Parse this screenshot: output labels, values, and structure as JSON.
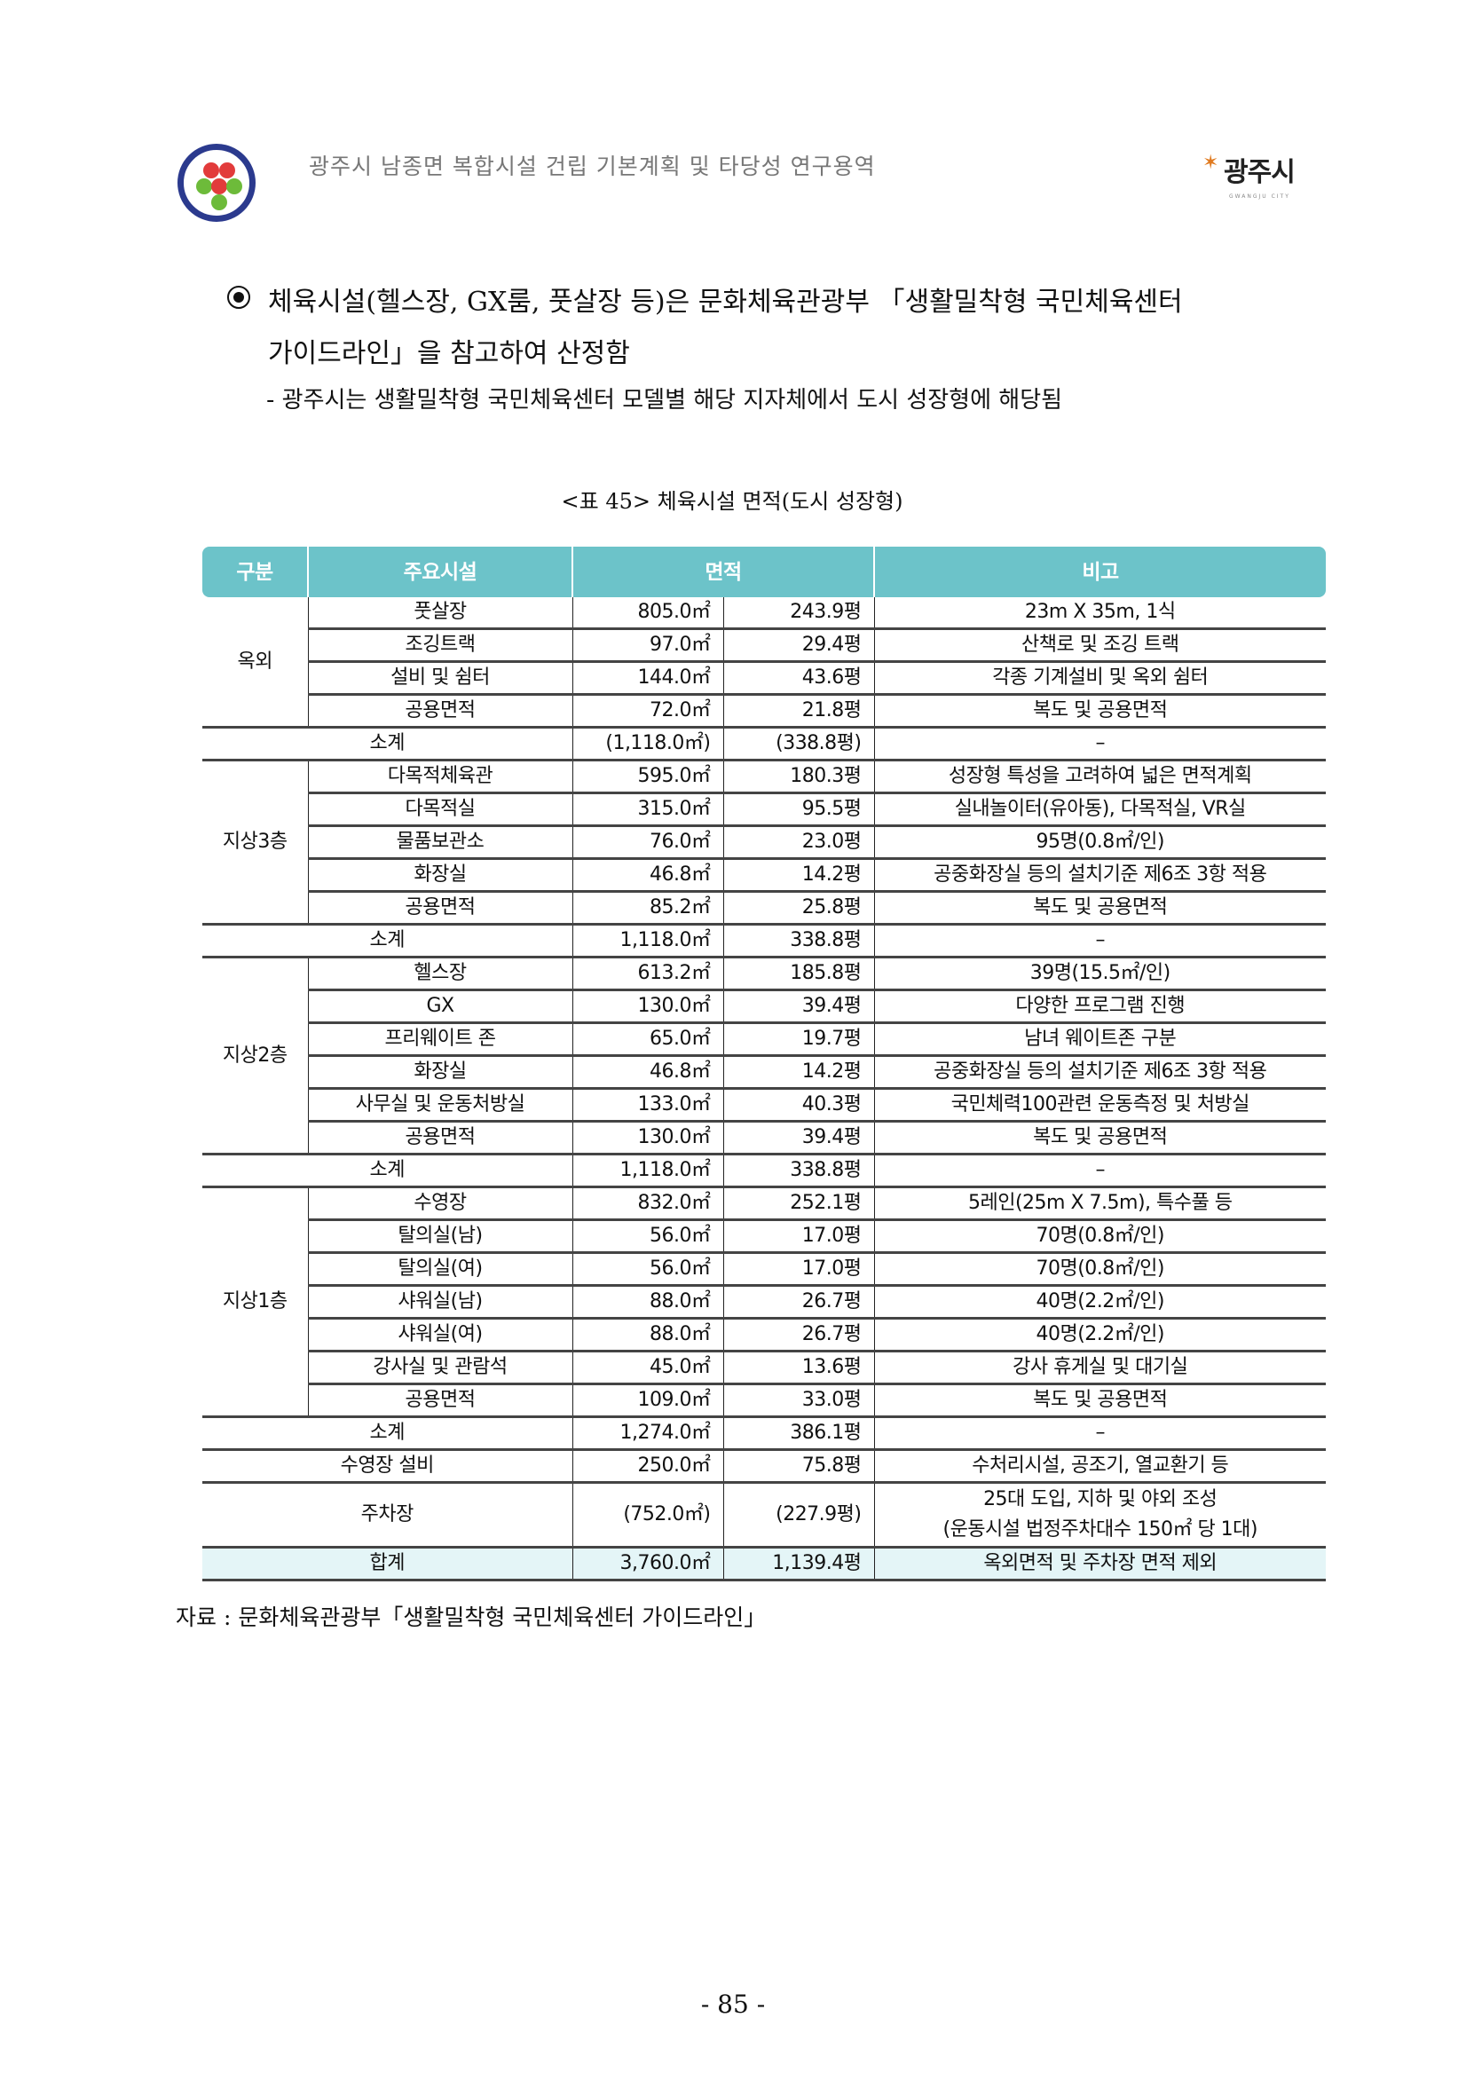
{
  "header": {
    "title": "광주시 남종면 복합시설 건립 기본계획 및 타당성 연구용역",
    "city_logo_text": "광주시",
    "city_logo_sub": "GWANGJU CITY"
  },
  "body": {
    "bullet_line1": "체육시설(헬스장,  GX룸,  풋살장  등)은  문화체육관광부  「생활밀착형  국민체육센터",
    "bullet_line2": "가이드라인」을 참고하여 산정함",
    "sub_item": "- 광주시는 생활밀착형 국민체육센터 모델별 해당 지자체에서 도시 성장형에 해당됨"
  },
  "table": {
    "caption": "<표 45> 체육시설 면적(도시 성장형)",
    "header_color": "#6cc3c9",
    "headers": [
      "구분",
      "주요시설",
      "면적",
      "비고"
    ],
    "groups": [
      {
        "label": "옥외",
        "rows": [
          {
            "facility": "풋살장",
            "m2": "805.0㎡",
            "py": "243.9평",
            "note": "23m X 35m, 1식"
          },
          {
            "facility": "조깅트랙",
            "m2": "97.0㎡",
            "py": "29.4평",
            "note": "산책로 및 조깅 트랙"
          },
          {
            "facility": "설비 및 쉼터",
            "m2": "144.0㎡",
            "py": "43.6평",
            "note": "각종 기계설비 및 옥외 쉼터"
          },
          {
            "facility": "공용면적",
            "m2": "72.0㎡",
            "py": "21.8평",
            "note": "복도 및 공용면적"
          }
        ],
        "subtotal": {
          "label": "소계",
          "m2": "(1,118.0㎡)",
          "py": "(338.8평)",
          "note": "–"
        }
      },
      {
        "label": "지상3층",
        "rows": [
          {
            "facility": "다목적체육관",
            "m2": "595.0㎡",
            "py": "180.3평",
            "note": "성장형 특성을 고려하여 넓은 면적계획"
          },
          {
            "facility": "다목적실",
            "m2": "315.0㎡",
            "py": "95.5평",
            "note": "실내놀이터(유아동), 다목적실, VR실"
          },
          {
            "facility": "물품보관소",
            "m2": "76.0㎡",
            "py": "23.0평",
            "note": "95명(0.8㎡/인)"
          },
          {
            "facility": "화장실",
            "m2": "46.8㎡",
            "py": "14.2평",
            "note": "공중화장실 등의 설치기준 제6조 3항 적용"
          },
          {
            "facility": "공용면적",
            "m2": "85.2㎡",
            "py": "25.8평",
            "note": "복도 및 공용면적"
          }
        ],
        "subtotal": {
          "label": "소계",
          "m2": "1,118.0㎡",
          "py": "338.8평",
          "note": "–"
        }
      },
      {
        "label": "지상2층",
        "rows": [
          {
            "facility": "헬스장",
            "m2": "613.2㎡",
            "py": "185.8평",
            "note": "39명(15.5㎡/인)"
          },
          {
            "facility": "GX",
            "m2": "130.0㎡",
            "py": "39.4평",
            "note": "다양한 프로그램 진행"
          },
          {
            "facility": "프리웨이트 존",
            "m2": "65.0㎡",
            "py": "19.7평",
            "note": "남녀 웨이트존 구분"
          },
          {
            "facility": "화장실",
            "m2": "46.8㎡",
            "py": "14.2평",
            "note": "공중화장실 등의 설치기준 제6조 3항 적용"
          },
          {
            "facility": "사무실 및 운동처방실",
            "m2": "133.0㎡",
            "py": "40.3평",
            "note": "국민체력100관련 운동측정 및 처방실"
          },
          {
            "facility": "공용면적",
            "m2": "130.0㎡",
            "py": "39.4평",
            "note": "복도 및 공용면적"
          }
        ],
        "subtotal": {
          "label": "소계",
          "m2": "1,118.0㎡",
          "py": "338.8평",
          "note": "–"
        }
      },
      {
        "label": "지상1층",
        "rows": [
          {
            "facility": "수영장",
            "m2": "832.0㎡",
            "py": "252.1평",
            "note": "5레인(25m X 7.5m), 특수풀 등"
          },
          {
            "facility": "탈의실(남)",
            "m2": "56.0㎡",
            "py": "17.0평",
            "note": "70명(0.8㎡/인)"
          },
          {
            "facility": "탈의실(여)",
            "m2": "56.0㎡",
            "py": "17.0평",
            "note": "70명(0.8㎡/인)"
          },
          {
            "facility": "샤워실(남)",
            "m2": "88.0㎡",
            "py": "26.7평",
            "note": "40명(2.2㎡/인)"
          },
          {
            "facility": "샤워실(여)",
            "m2": "88.0㎡",
            "py": "26.7평",
            "note": "40명(2.2㎡/인)"
          },
          {
            "facility": "강사실 및 관람석",
            "m2": "45.0㎡",
            "py": "13.6평",
            "note": "강사 휴게실 및 대기실"
          },
          {
            "facility": "공용면적",
            "m2": "109.0㎡",
            "py": "33.0평",
            "note": "복도 및 공용면적"
          }
        ],
        "subtotal": {
          "label": "소계",
          "m2": "1,274.0㎡",
          "py": "386.1평",
          "note": "–"
        }
      }
    ],
    "extra_rows": [
      {
        "label": "수영장 설비",
        "m2": "250.0㎡",
        "py": "75.8평",
        "note": "수처리시설, 공조기, 열교환기 등"
      },
      {
        "label": "주차장",
        "m2": "(752.0㎡)",
        "py": "(227.9평)",
        "note": "25대 도입, 지하 및 야외 조성",
        "note2": "(운동시설 법정주차대수 150㎡ 당 1대)"
      }
    ],
    "total": {
      "label": "합계",
      "m2": "3,760.0㎡",
      "py": "1,139.4평",
      "note": "옥외면적 및 주차장 면적 제외",
      "bg_color": "#e4f5f7"
    },
    "source": "자료 : 문화체육관광부「생활밀착형 국민체육센터 가이드라인」"
  },
  "footer": {
    "page_number": "- 85 -"
  }
}
